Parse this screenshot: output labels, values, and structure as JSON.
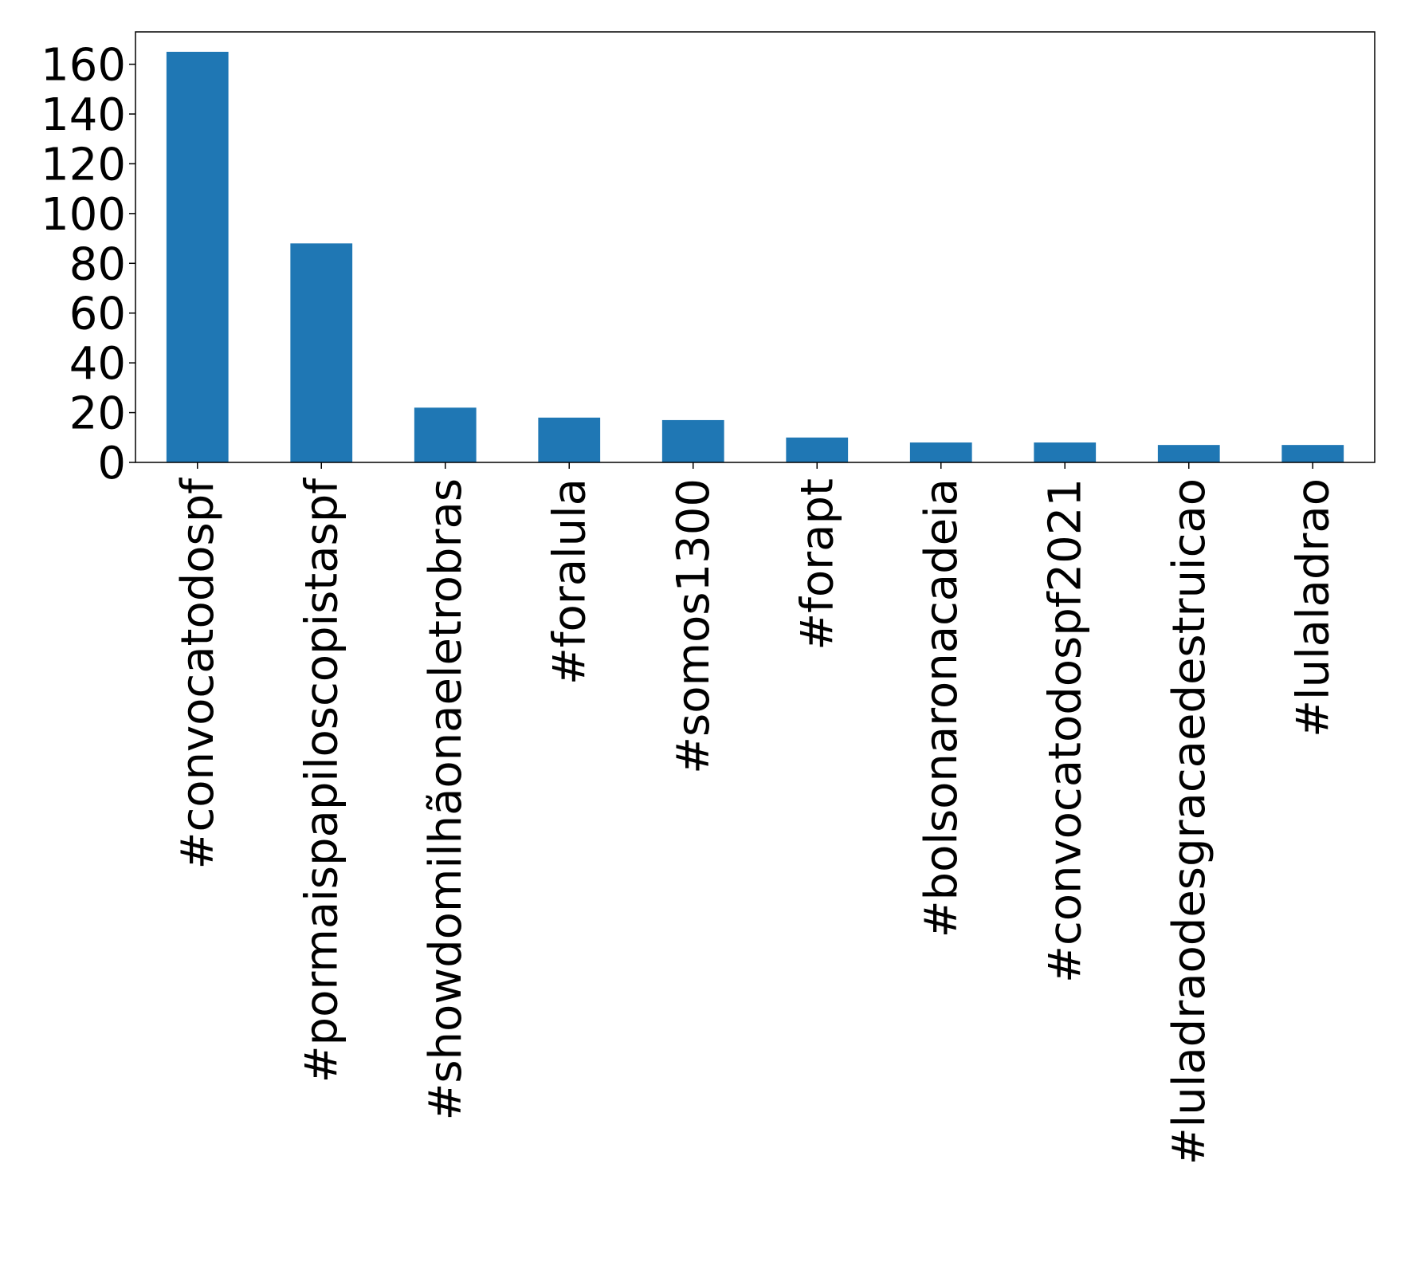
{
  "chart_data": {
    "type": "bar",
    "title": "",
    "xlabel": "",
    "ylabel": "",
    "categories": [
      "#convocatodospf",
      "#pormaispapiloscopistaspf",
      "#showdomilhãonaeletrobras",
      "#foralula",
      "#somos1300",
      "#forapt",
      "#bolsonaronacadeia",
      "#convocatodospf2021",
      "#luladraodesgracaedestruicao",
      "#lulaladrao"
    ],
    "values": [
      165,
      88,
      22,
      18,
      17,
      10,
      8,
      8,
      7,
      7
    ],
    "ylim": [
      0,
      173
    ],
    "yticks": [
      0,
      20,
      40,
      60,
      80,
      100,
      120,
      140,
      160
    ],
    "grid": false,
    "legend": "none",
    "bar_color": "#1f77b4"
  }
}
